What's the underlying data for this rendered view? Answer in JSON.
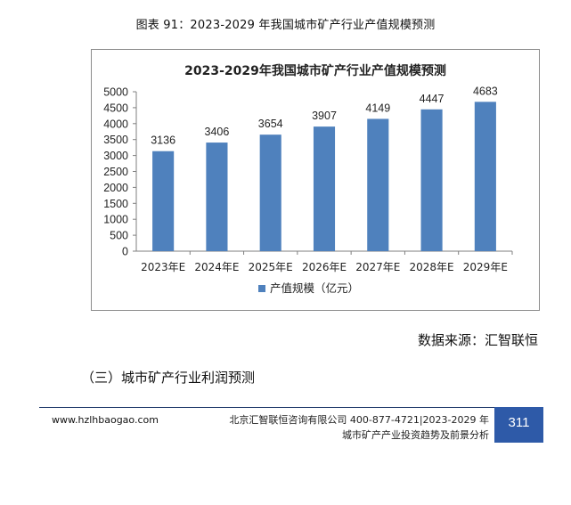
{
  "figure_caption": "图表 91：2023-2029 年我国城市矿产行业产值规模预测",
  "chart_data": {
    "type": "bar",
    "title": "2023-2029年我国城市矿产行业产值规模预测",
    "categories": [
      "2023年E",
      "2024年E",
      "2025年E",
      "2026年E",
      "2027年E",
      "2028年E",
      "2029年E"
    ],
    "series": [
      {
        "name": "产值规模（亿元）",
        "values": [
          3136,
          3406,
          3654,
          3907,
          4149,
          4447,
          4683
        ]
      }
    ],
    "ylim": [
      0,
      5000
    ],
    "yticks": [
      0,
      500,
      1000,
      1500,
      2000,
      2500,
      3000,
      3500,
      4000,
      4500,
      5000
    ],
    "xlabel": "",
    "ylabel": "",
    "grid": false,
    "legend_position": "bottom",
    "bar_color": "#4f81bd"
  },
  "source_note": "数据来源：汇智联恒",
  "section_heading": "（三）城市矿产行业利润预测",
  "footer": {
    "website": "www.hzlhbaogao.com",
    "company_line": "北京汇智联恒咨询有限公司  400-877-4721|2023-2029 年",
    "report_line": "城市矿产产业投资趋势及前景分析",
    "page_number": "311",
    "accent_color": "#2e5aa8"
  }
}
